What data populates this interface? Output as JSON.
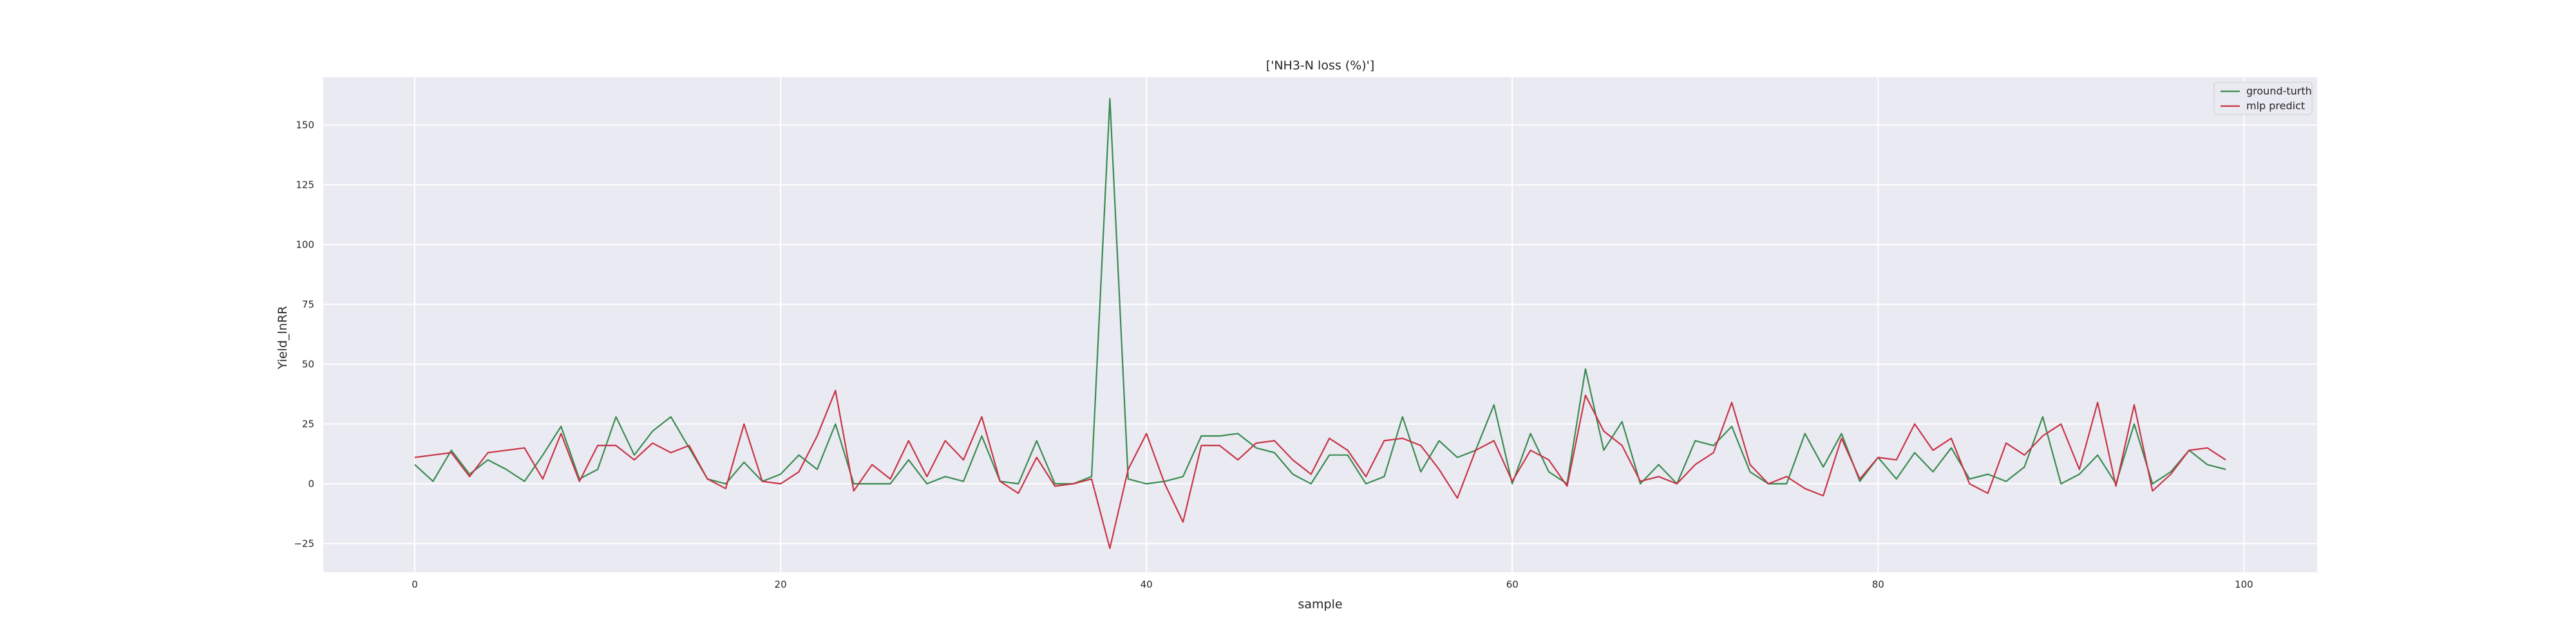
{
  "chart_data": {
    "type": "line",
    "title": "['NH3-N loss (%)']",
    "xlabel": "sample",
    "ylabel": "Yield_lnRR",
    "xlim": [
      -5,
      104
    ],
    "ylim": [
      -37,
      170
    ],
    "xticks": [
      0,
      20,
      40,
      60,
      80,
      100
    ],
    "yticks": [
      -25,
      0,
      25,
      50,
      75,
      100,
      125,
      150
    ],
    "grid": true,
    "legend_position": "top-right",
    "x": [
      0,
      1,
      2,
      3,
      4,
      5,
      6,
      7,
      8,
      9,
      10,
      11,
      12,
      13,
      14,
      15,
      16,
      17,
      18,
      19,
      20,
      21,
      22,
      23,
      24,
      25,
      26,
      27,
      28,
      29,
      30,
      31,
      32,
      33,
      34,
      35,
      36,
      37,
      38,
      39,
      40,
      41,
      42,
      43,
      44,
      45,
      46,
      47,
      48,
      49,
      50,
      51,
      52,
      53,
      54,
      55,
      56,
      57,
      58,
      59,
      60,
      61,
      62,
      63,
      64,
      65,
      66,
      67,
      68,
      69,
      70,
      71,
      72,
      73,
      74,
      75,
      76,
      77,
      78,
      79,
      80,
      81,
      82,
      83,
      84,
      85,
      86,
      87,
      88,
      89,
      90,
      91,
      92,
      93,
      94,
      95,
      96,
      97,
      98,
      99
    ],
    "series": [
      {
        "name": "ground-turth",
        "color": "#3a8a50",
        "values": [
          8,
          1,
          14,
          4,
          10,
          6,
          1,
          12,
          24,
          2,
          6,
          28,
          12,
          22,
          28,
          15,
          2,
          0,
          9,
          1,
          4,
          12,
          6,
          25,
          0,
          0,
          0,
          10,
          0,
          3,
          1,
          20,
          1,
          0,
          18,
          0,
          0,
          3,
          161,
          2,
          0,
          1,
          3,
          20,
          20,
          21,
          15,
          13,
          4,
          0,
          12,
          12,
          0,
          3,
          28,
          5,
          18,
          11,
          14,
          33,
          0,
          21,
          5,
          0,
          48,
          14,
          26,
          0,
          8,
          0,
          18,
          16,
          24,
          5,
          0,
          0,
          21,
          7,
          21,
          1,
          11,
          2,
          13,
          5,
          15,
          2,
          4,
          1,
          7,
          28,
          0,
          4,
          12,
          0,
          25,
          0,
          5,
          14,
          8,
          6
        ]
      },
      {
        "name": "mlp predict",
        "color": "#c83446",
        "values": [
          11,
          12,
          13,
          3,
          13,
          14,
          15,
          2,
          21,
          1,
          16,
          16,
          10,
          17,
          13,
          16,
          2,
          -2,
          25,
          1,
          0,
          5,
          20,
          39,
          -3,
          8,
          2,
          18,
          3,
          18,
          10,
          28,
          1,
          -4,
          11,
          -1,
          0,
          2,
          -27,
          6,
          21,
          0,
          -16,
          16,
          16,
          10,
          17,
          18,
          10,
          4,
          19,
          14,
          3,
          18,
          19,
          16,
          6,
          -6,
          14,
          18,
          1,
          14,
          10,
          -1,
          37,
          22,
          16,
          1,
          3,
          0,
          8,
          13,
          34,
          8,
          0,
          3,
          -2,
          -5,
          19,
          2,
          11,
          10,
          25,
          14,
          19,
          0,
          -4,
          17,
          12,
          20,
          25,
          6,
          34,
          -1,
          33,
          -3,
          4,
          14,
          15,
          10
        ]
      }
    ]
  }
}
